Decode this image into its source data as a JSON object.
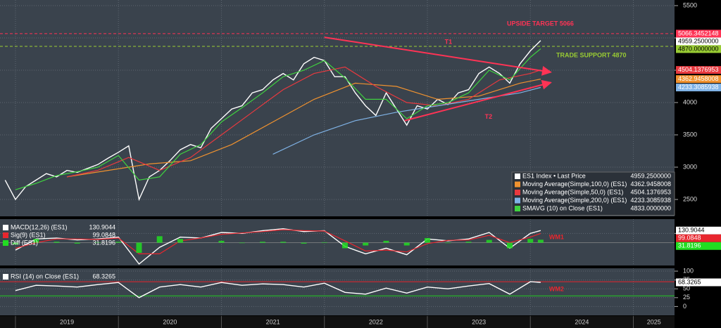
{
  "chart_data": [
    {
      "type": "line",
      "xlim": [
        2018.85,
        2025.4
      ],
      "xticks": [
        2019,
        2020,
        2021,
        2022,
        2023,
        2024,
        2025
      ],
      "ylim": [
        2239,
        5587
      ],
      "yticks": [
        2500,
        3000,
        3500,
        4000,
        4500,
        5000,
        5500
      ],
      "grid": true,
      "series": [
        {
          "name": "ES1 Index • Last Price",
          "last_label": "4959.2500000",
          "color": "#ffffff",
          "x": [
            2018.9,
            2019.0,
            2019.1,
            2019.2,
            2019.3,
            2019.4,
            2019.5,
            2019.6,
            2019.7,
            2019.8,
            2019.9,
            2020.0,
            2020.1,
            2020.2,
            2020.3,
            2020.4,
            2020.5,
            2020.6,
            2020.7,
            2020.8,
            2020.9,
            2021.0,
            2021.1,
            2021.2,
            2021.3,
            2021.4,
            2021.5,
            2021.6,
            2021.7,
            2021.8,
            2021.9,
            2022.0,
            2022.1,
            2022.2,
            2022.3,
            2022.4,
            2022.5,
            2022.6,
            2022.7,
            2022.8,
            2022.9,
            2023.0,
            2023.1,
            2023.2,
            2023.3,
            2023.4,
            2023.5,
            2023.6,
            2023.7,
            2023.8,
            2023.9,
            2024.0,
            2024.1
          ],
          "values": [
            2800,
            2500,
            2700,
            2800,
            2900,
            2850,
            2950,
            2920,
            2980,
            3040,
            3140,
            3230,
            3330,
            2500,
            2850,
            2950,
            3100,
            3270,
            3350,
            3300,
            3600,
            3750,
            3900,
            3950,
            4150,
            4200,
            4350,
            4450,
            4350,
            4600,
            4700,
            4650,
            4400,
            4400,
            4150,
            3950,
            3800,
            4150,
            3900,
            3650,
            3950,
            3900,
            4050,
            3970,
            4150,
            4200,
            4450,
            4550,
            4450,
            4300,
            4600,
            4800,
            4959.25
          ]
        },
        {
          "name": "Moving Average(Simple,100,0)  (ES1)",
          "last_label": "4362.9458008",
          "color": "#f0922f",
          "x": [
            2019.5,
            2019.9,
            2020.3,
            2020.7,
            2021.1,
            2021.5,
            2021.9,
            2022.3,
            2022.7,
            2023.1,
            2023.5,
            2023.9,
            2024.1
          ],
          "values": [
            2850,
            2950,
            3050,
            3100,
            3350,
            3700,
            4050,
            4300,
            4250,
            4050,
            4100,
            4300,
            4362.9458008
          ]
        },
        {
          "name": "Moving Average(Simple,50,0)  (ES1)",
          "last_label": "4504.1376953",
          "color": "#e8393f",
          "x": [
            2019.5,
            2019.8,
            2020.1,
            2020.4,
            2020.7,
            2021.0,
            2021.3,
            2021.6,
            2021.9,
            2022.2,
            2022.5,
            2022.8,
            2023.1,
            2023.4,
            2023.7,
            2024.0,
            2024.1
          ],
          "values": [
            2850,
            2950,
            3150,
            2950,
            3150,
            3500,
            3850,
            4200,
            4450,
            4550,
            4250,
            4000,
            3950,
            4050,
            4350,
            4450,
            4504.1376953
          ]
        },
        {
          "name": "Moving Average(Simple,200,0)  (ES1)",
          "last_label": "4233.3085938",
          "color": "#7fb2e5",
          "x": [
            2021.5,
            2021.9,
            2022.3,
            2022.7,
            2023.1,
            2023.5,
            2023.9,
            2024.1
          ],
          "values": [
            3200,
            3500,
            3720,
            3850,
            3950,
            4050,
            4150,
            4233.3085938
          ]
        },
        {
          "name": "SMAVG  (10)  on Close  (ES1)",
          "last_label": "4833.0000000",
          "color": "#3fd23f",
          "x": [
            2019.0,
            2019.2,
            2019.4,
            2019.6,
            2019.8,
            2020.0,
            2020.2,
            2020.4,
            2020.6,
            2020.8,
            2021.0,
            2021.2,
            2021.4,
            2021.6,
            2021.8,
            2022.0,
            2022.2,
            2022.4,
            2022.6,
            2022.8,
            2023.0,
            2023.2,
            2023.4,
            2023.6,
            2023.8,
            2024.0,
            2024.1
          ],
          "values": [
            2650,
            2750,
            2870,
            2930,
            3000,
            3180,
            2800,
            2850,
            3200,
            3350,
            3700,
            3920,
            4150,
            4400,
            4500,
            4650,
            4380,
            4050,
            4050,
            3750,
            3950,
            4000,
            4150,
            4500,
            4350,
            4700,
            4833
          ]
        }
      ],
      "levels": [
        {
          "label": "UPSIDE TARGET 5066",
          "value": 5066.3452148,
          "value_label": "5066.3452148",
          "color": "#ff3355"
        },
        {
          "label": "TRADE SUPPORT 4870",
          "value": 4870,
          "value_label": "4870.0000000",
          "color": "#99cc33"
        }
      ],
      "trendlines": [
        {
          "label": "T1",
          "color": "#ff3355",
          "points": [
            [
              2022.0,
              5010
            ],
            [
              2024.2,
              4470
            ]
          ]
        },
        {
          "label": "T2",
          "color": "#ff3355",
          "points": [
            [
              2022.78,
              3720
            ],
            [
              2024.2,
              4310
            ]
          ]
        }
      ]
    },
    {
      "type": "line",
      "ylim": [
        -246,
        254
      ],
      "yticks": [
        100
      ],
      "zero_line": true,
      "annotation": "WM1",
      "series": [
        {
          "name": "MACD(12,26)  (ES1)",
          "last_label": "130.9044",
          "color": "#ffffff",
          "x": [
            2019.0,
            2019.2,
            2019.4,
            2019.6,
            2019.8,
            2020.0,
            2020.2,
            2020.4,
            2020.6,
            2020.8,
            2021.0,
            2021.2,
            2021.4,
            2021.6,
            2021.8,
            2022.0,
            2022.2,
            2022.4,
            2022.6,
            2022.8,
            2023.0,
            2023.2,
            2023.4,
            2023.6,
            2023.8,
            2024.0,
            2024.1
          ],
          "values": [
            -80,
            40,
            50,
            30,
            40,
            60,
            -230,
            -50,
            60,
            50,
            110,
            100,
            130,
            150,
            120,
            130,
            -40,
            -120,
            -60,
            -130,
            40,
            20,
            40,
            110,
            -60,
            100,
            130.9044
          ]
        },
        {
          "name": "Sig(9)  (ES1)",
          "last_label": "99.0848",
          "color": "#e8262e",
          "x": [
            2019.0,
            2019.2,
            2019.4,
            2019.6,
            2019.8,
            2020.0,
            2020.2,
            2020.4,
            2020.6,
            2020.8,
            2021.0,
            2021.2,
            2021.4,
            2021.6,
            2021.8,
            2022.0,
            2022.2,
            2022.4,
            2022.6,
            2022.8,
            2023.0,
            2023.2,
            2023.4,
            2023.6,
            2023.8,
            2024.0,
            2024.1
          ],
          "values": [
            -60,
            0,
            40,
            40,
            35,
            50,
            -120,
            -120,
            20,
            50,
            90,
            105,
            120,
            140,
            130,
            125,
            20,
            -90,
            -80,
            -100,
            -10,
            25,
            30,
            80,
            0,
            60,
            99.0848
          ]
        },
        {
          "name": "Diff  (ES1)",
          "last_label": "31.8196",
          "color": "#22dd22",
          "style": "bar",
          "x": [
            2019.0,
            2019.2,
            2019.4,
            2019.6,
            2019.8,
            2020.0,
            2020.2,
            2020.4,
            2020.6,
            2020.8,
            2021.0,
            2021.2,
            2021.4,
            2021.6,
            2021.8,
            2022.0,
            2022.2,
            2022.4,
            2022.6,
            2022.8,
            2023.0,
            2023.2,
            2023.4,
            2023.6,
            2023.8,
            2024.0,
            2024.1
          ],
          "values": [
            -20,
            40,
            10,
            -10,
            5,
            10,
            -110,
            70,
            40,
            0,
            20,
            -5,
            10,
            10,
            -10,
            5,
            -60,
            -30,
            20,
            -30,
            50,
            -5,
            10,
            30,
            -60,
            40,
            31.8196
          ]
        }
      ]
    },
    {
      "type": "line",
      "ylim": [
        -25,
        108
      ],
      "yticks": [
        0,
        25,
        50,
        75,
        100
      ],
      "annotation": "WM2",
      "levels": [
        {
          "value": 70,
          "color": "#e8262e"
        },
        {
          "value": 30,
          "color": "#22cc22"
        }
      ],
      "series": [
        {
          "name": "RSI (14)  on Close (ES1)",
          "last_label": "68.3265",
          "color": "#ffffff",
          "x": [
            2019.0,
            2019.2,
            2019.4,
            2019.6,
            2019.8,
            2020.0,
            2020.2,
            2020.4,
            2020.6,
            2020.8,
            2021.0,
            2021.2,
            2021.4,
            2021.6,
            2021.8,
            2022.0,
            2022.2,
            2022.4,
            2022.6,
            2022.8,
            2023.0,
            2023.2,
            2023.4,
            2023.6,
            2023.8,
            2024.0,
            2024.1
          ],
          "values": [
            45,
            60,
            58,
            55,
            62,
            68,
            25,
            55,
            62,
            55,
            68,
            60,
            64,
            62,
            55,
            66,
            40,
            35,
            52,
            38,
            55,
            50,
            58,
            65,
            35,
            70,
            68.3265
          ]
        }
      ]
    }
  ]
}
